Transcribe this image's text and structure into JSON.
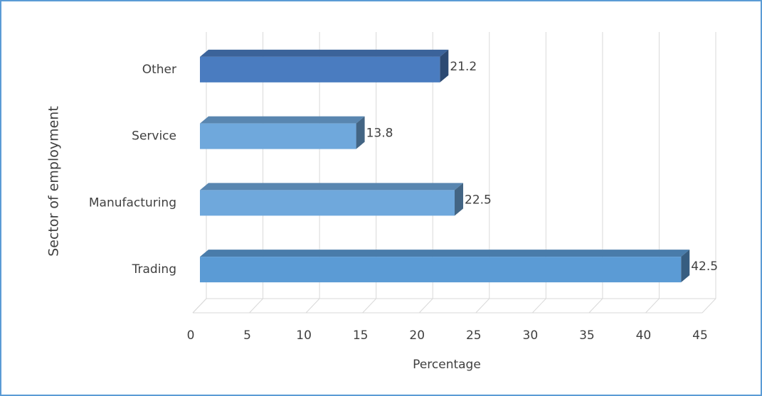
{
  "chart_data": {
    "type": "bar",
    "orientation": "horizontal",
    "three_d": true,
    "categories": [
      "Trading",
      "Manufacturing",
      "Service",
      "Other"
    ],
    "values": [
      42.5,
      22.5,
      13.8,
      21.2
    ],
    "colors": [
      "#5b9bd5",
      "#6fa8dc",
      "#6fa8dc",
      "#4a7cc0"
    ],
    "xlim": [
      0,
      45
    ],
    "xticks": [
      0,
      5,
      10,
      15,
      20,
      25,
      30,
      35,
      40,
      45
    ],
    "xlabel": "Percentage",
    "ylabel": "Sector of employment",
    "grid": true
  }
}
